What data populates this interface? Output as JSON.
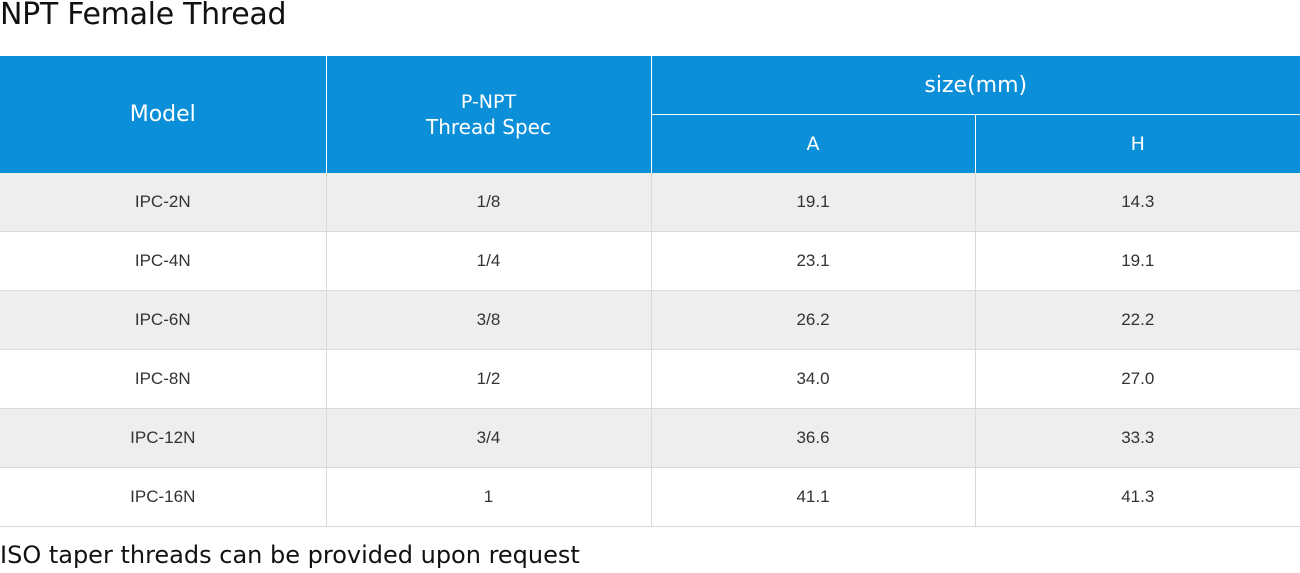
{
  "page": {
    "title": "NPT Female Thread",
    "footnote": "ISO taper threads can be provided upon request"
  },
  "colors": {
    "header_bg": "#0b8fd8",
    "header_text": "#ffffff",
    "stripe_row": "#eeeeef",
    "plain_row": "#ffffff"
  },
  "table": {
    "headers": {
      "model": "Model",
      "spec_line1": "P-NPT",
      "spec_line2": "Thread Spec",
      "size_group": "size(mm)",
      "col_a": "A",
      "col_h": "H"
    },
    "rows": [
      {
        "model": "IPC-2N",
        "spec": "1/8",
        "a": "19.1",
        "h": "14.3"
      },
      {
        "model": "IPC-4N",
        "spec": "1/4",
        "a": "23.1",
        "h": "19.1"
      },
      {
        "model": "IPC-6N",
        "spec": "3/8",
        "a": "26.2",
        "h": "22.2"
      },
      {
        "model": "IPC-8N",
        "spec": "1/2",
        "a": "34.0",
        "h": "27.0"
      },
      {
        "model": "IPC-12N",
        "spec": "3/4",
        "a": "36.6",
        "h": "33.3"
      },
      {
        "model": "IPC-16N",
        "spec": "1",
        "a": "41.1",
        "h": "41.3"
      }
    ]
  }
}
